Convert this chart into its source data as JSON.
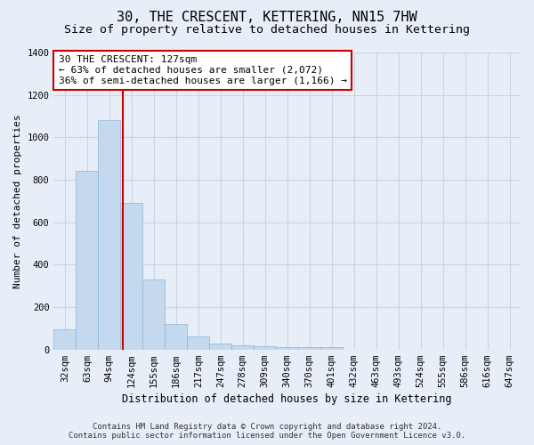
{
  "title": "30, THE CRESCENT, KETTERING, NN15 7HW",
  "subtitle": "Size of property relative to detached houses in Kettering",
  "xlabel": "Distribution of detached houses by size in Kettering",
  "ylabel": "Number of detached properties",
  "categories": [
    "32sqm",
    "63sqm",
    "94sqm",
    "124sqm",
    "155sqm",
    "186sqm",
    "217sqm",
    "247sqm",
    "278sqm",
    "309sqm",
    "340sqm",
    "370sqm",
    "401sqm",
    "432sqm",
    "463sqm",
    "493sqm",
    "524sqm",
    "555sqm",
    "586sqm",
    "616sqm",
    "647sqm"
  ],
  "values": [
    95,
    840,
    1080,
    690,
    330,
    120,
    60,
    30,
    20,
    15,
    12,
    10,
    10,
    0,
    0,
    0,
    0,
    0,
    0,
    0,
    0
  ],
  "bar_color": "#c5d9ee",
  "bar_edge_color": "#8ab4d8",
  "red_line_color": "#cc0000",
  "annotation_text": "30 THE CRESCENT: 127sqm\n← 63% of detached houses are smaller (2,072)\n36% of semi-detached houses are larger (1,166) →",
  "annotation_box_color": "#ffffff",
  "annotation_box_edge": "#cc0000",
  "ylim": [
    0,
    1400
  ],
  "yticks": [
    0,
    200,
    400,
    600,
    800,
    1000,
    1200,
    1400
  ],
  "grid_color": "#c8d4e8",
  "background_color": "#e8eef8",
  "footer_line1": "Contains HM Land Registry data © Crown copyright and database right 2024.",
  "footer_line2": "Contains public sector information licensed under the Open Government Licence v3.0.",
  "title_fontsize": 11,
  "subtitle_fontsize": 9.5,
  "xlabel_fontsize": 8.5,
  "ylabel_fontsize": 8,
  "tick_fontsize": 7.5,
  "annotation_fontsize": 8,
  "footer_fontsize": 6.5
}
